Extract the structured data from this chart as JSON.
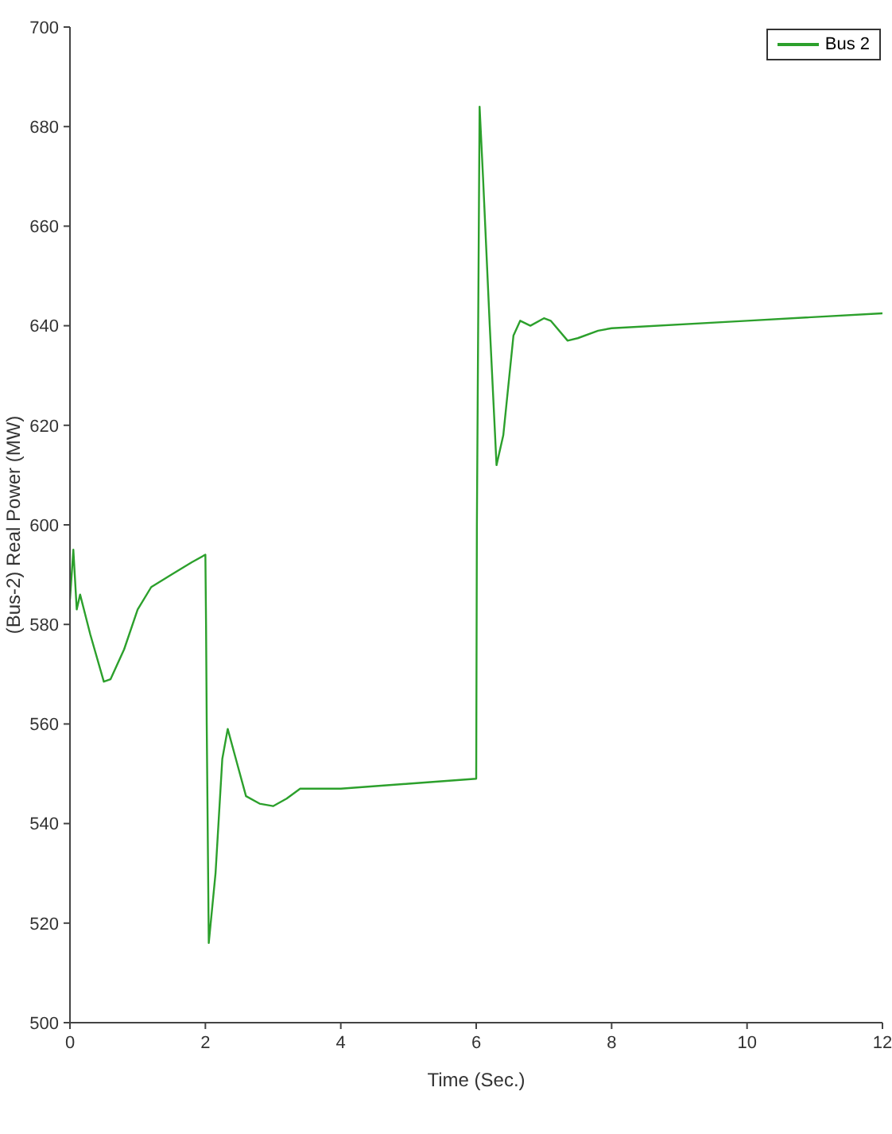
{
  "chart_data": {
    "type": "line",
    "xlabel": "Time (Sec.)",
    "ylabel": "(Bus-2) Real Power (MW)",
    "xlim": [
      0,
      12
    ],
    "xticks": [
      0,
      2,
      4,
      6,
      8,
      10,
      12
    ],
    "ylim": [
      500,
      700
    ],
    "yticks": [
      500,
      520,
      540,
      560,
      580,
      600,
      620,
      640,
      660,
      680,
      700
    ],
    "grid": false,
    "legend": "top right",
    "marker": "none",
    "line_style": "solid",
    "series": [
      {
        "name": "Bus 2",
        "color": "#2ca02c",
        "x": [
          0,
          0.05,
          0.1,
          0.15,
          0.3,
          0.5,
          0.6,
          0.8,
          1.0,
          1.2,
          1.5,
          1.8,
          2.0,
          2.01,
          2.02,
          2.05,
          2.15,
          2.25,
          2.33,
          2.45,
          2.6,
          2.8,
          3.0,
          3.2,
          3.4,
          3.6,
          4.0,
          5.0,
          6.0,
          6.01,
          6.05,
          6.1,
          6.2,
          6.3,
          6.4,
          6.55,
          6.65,
          6.8,
          7.0,
          7.1,
          7.35,
          7.5,
          7.8,
          8.0,
          10.0,
          12.0
        ],
        "values": [
          585,
          595,
          583,
          586,
          578,
          568.5,
          569,
          575,
          583,
          587.5,
          590,
          592.5,
          594,
          580,
          560,
          516,
          530,
          553,
          559,
          553,
          545.5,
          544,
          543.5,
          545,
          547,
          547,
          547,
          548,
          549,
          600,
          684,
          670,
          640,
          612,
          618,
          638,
          641,
          640,
          641.5,
          641,
          637,
          637.5,
          639,
          639.5,
          641,
          642.5
        ]
      }
    ]
  }
}
